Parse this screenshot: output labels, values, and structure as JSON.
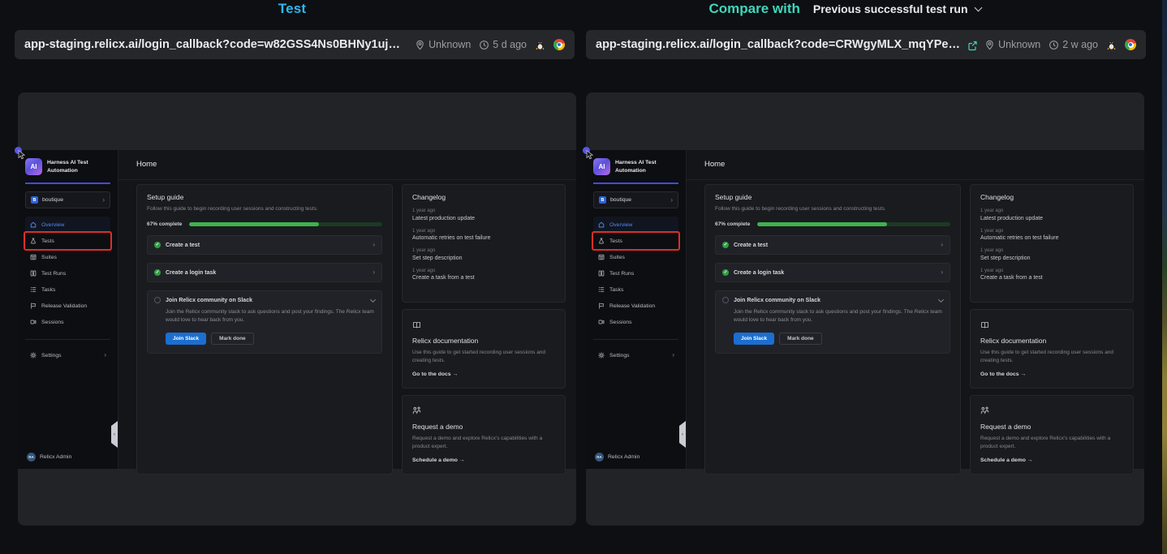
{
  "header": {
    "left_title": "Test",
    "compare_label": "Compare with",
    "compare_value": "Previous successful test run"
  },
  "panels": [
    {
      "url": "app-staging.relicx.ai/login_callback?code=w82GSS4Ns0BHNy1uj…",
      "location": "Unknown",
      "age": "5 d ago",
      "os_icon": "linux-tux",
      "browser_icon": "chrome",
      "has_external_link": false
    },
    {
      "url": "app-staging.relicx.ai/login_callback?code=CRWgyMLX_mqYPe…",
      "location": "Unknown",
      "age": "2 w ago",
      "os_icon": "linux-tux",
      "browser_icon": "chrome",
      "has_external_link": true
    }
  ],
  "app": {
    "brand": "Harness AI Test Automation",
    "logo_text": "AI",
    "project_badge": "B",
    "project": "boutique",
    "nav": [
      {
        "label": "Overview",
        "icon": "home",
        "active": true
      },
      {
        "label": "Tests",
        "icon": "flask",
        "highlighted_red_box": true
      },
      {
        "label": "Suites",
        "icon": "grid"
      },
      {
        "label": "Test Runs",
        "icon": "columns"
      },
      {
        "label": "Tasks",
        "icon": "list"
      },
      {
        "label": "Release Validation",
        "icon": "flag"
      },
      {
        "label": "Sessions",
        "icon": "video"
      }
    ],
    "settings_label": "Settings",
    "user": {
      "initials": "RA",
      "name": "Relicx Admin"
    },
    "page_title": "Home",
    "setup_guide": {
      "title": "Setup guide",
      "description": "Follow this guide to begin recording user sessions and constructing tests.",
      "progress_label": "67% complete",
      "progress_pct": 67,
      "tasks": [
        {
          "label": "Create a test",
          "done": true
        },
        {
          "label": "Create a login task",
          "done": true
        },
        {
          "label": "Join Relicx community on Slack",
          "done": false,
          "expanded": true,
          "description": "Join the Relicx community slack to ask questions and post your findings. The Relicx team would love to hear back from you.",
          "primary_button": "Join Slack",
          "secondary_button": "Mark done"
        }
      ]
    },
    "changelog": {
      "title": "Changelog",
      "items": [
        {
          "time": "1 year ago",
          "title": "Latest production update"
        },
        {
          "time": "1 year ago",
          "title": "Automatic retries on test failure"
        },
        {
          "time": "1 year ago",
          "title": "Set step description"
        },
        {
          "time": "1 year ago",
          "title": "Create a task from a test"
        }
      ]
    },
    "docs_card": {
      "icon": "book",
      "title": "Relicx documentation",
      "description": "Use this guide to get started recording user sessions and creating tests.",
      "link": "Go to the docs →"
    },
    "demo_card": {
      "icon": "people",
      "title": "Request a demo",
      "description": "Request a demo and explore Relicx's capabilities with a product expert.",
      "link": "Schedule a demo →"
    }
  },
  "colors": {
    "test_title_cyan": "#2eb7f2",
    "compare_teal": "#3fd6bd",
    "highlight_red": "#dc2f28",
    "progress_green": "#3fb14d",
    "primary_button_blue": "#1b6fd0",
    "active_nav_blue": "#4d8df6"
  }
}
